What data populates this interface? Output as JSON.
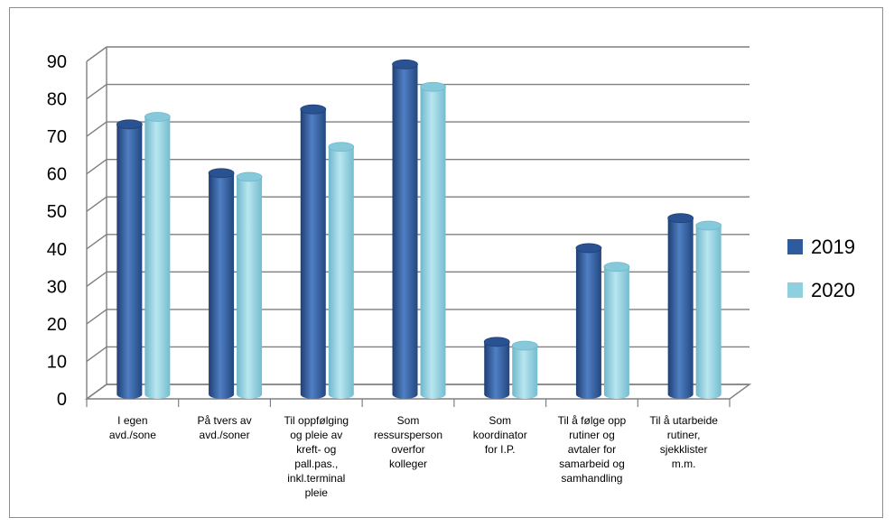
{
  "chart_data": {
    "type": "bar",
    "categories": [
      [
        "I egen",
        "avd./sone"
      ],
      [
        "På tvers av",
        "avd./soner"
      ],
      [
        "Til oppfølging",
        "og pleie av",
        "kreft- og",
        "pall.pas.,",
        "inkl.terminal",
        "pleie"
      ],
      [
        "Som",
        "ressursperson",
        "overfor",
        "kolleger"
      ],
      [
        "Som",
        "koordinator",
        "for I.P."
      ],
      [
        "Til å følge opp",
        "rutiner og",
        "avtaler for",
        "samarbeid og",
        "samhandling"
      ],
      [
        "Til å utarbeide",
        "rutiner,",
        "sjekklister",
        "m.m."
      ]
    ],
    "series": [
      {
        "name": "2019",
        "color": "#2e5b9e",
        "values": [
          72,
          59,
          76,
          88,
          14,
          39,
          47
        ]
      },
      {
        "name": "2020",
        "color": "#8fd0e0",
        "values": [
          74,
          58,
          66,
          82,
          13,
          34,
          45
        ]
      }
    ],
    "ylim": [
      0,
      90
    ],
    "yticks": [
      "0",
      "10",
      "20",
      "30",
      "40",
      "50",
      "60",
      "70",
      "80",
      "90"
    ],
    "grid": true,
    "legend_position": "right"
  }
}
